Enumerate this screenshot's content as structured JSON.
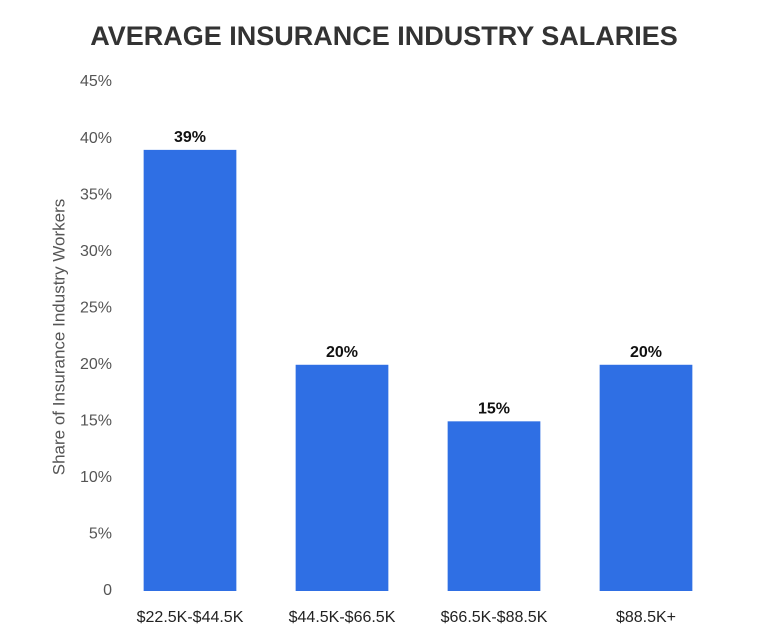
{
  "chart_data": {
    "type": "bar",
    "title": "AVERAGE INSURANCE INDUSTRY SALARIES",
    "y_label": "Share of Insurance Industry Workers",
    "categories": [
      "$22.5K-$44.5K",
      "$44.5K-$66.5K",
      "$66.5K-$88.5K",
      "$88.5K+"
    ],
    "values": [
      39,
      20,
      15,
      20
    ],
    "value_labels": [
      "39%",
      "20%",
      "15%",
      "20%"
    ],
    "color": "#2f6fe4",
    "ylim": [
      0,
      45
    ],
    "yticks": [
      0,
      {
        "value": 5,
        "label": "5%"
      },
      {
        "value": 10,
        "label": "10%"
      },
      {
        "value": 15,
        "label": "15%"
      },
      {
        "value": 20,
        "label": "20%"
      },
      {
        "value": 25,
        "label": "25%"
      },
      {
        "value": 30,
        "label": "30%"
      },
      {
        "value": 35,
        "label": "35%"
      },
      {
        "value": 40,
        "label": "40%"
      },
      {
        "value": 45,
        "label": "45%"
      }
    ],
    "grid": false
  }
}
